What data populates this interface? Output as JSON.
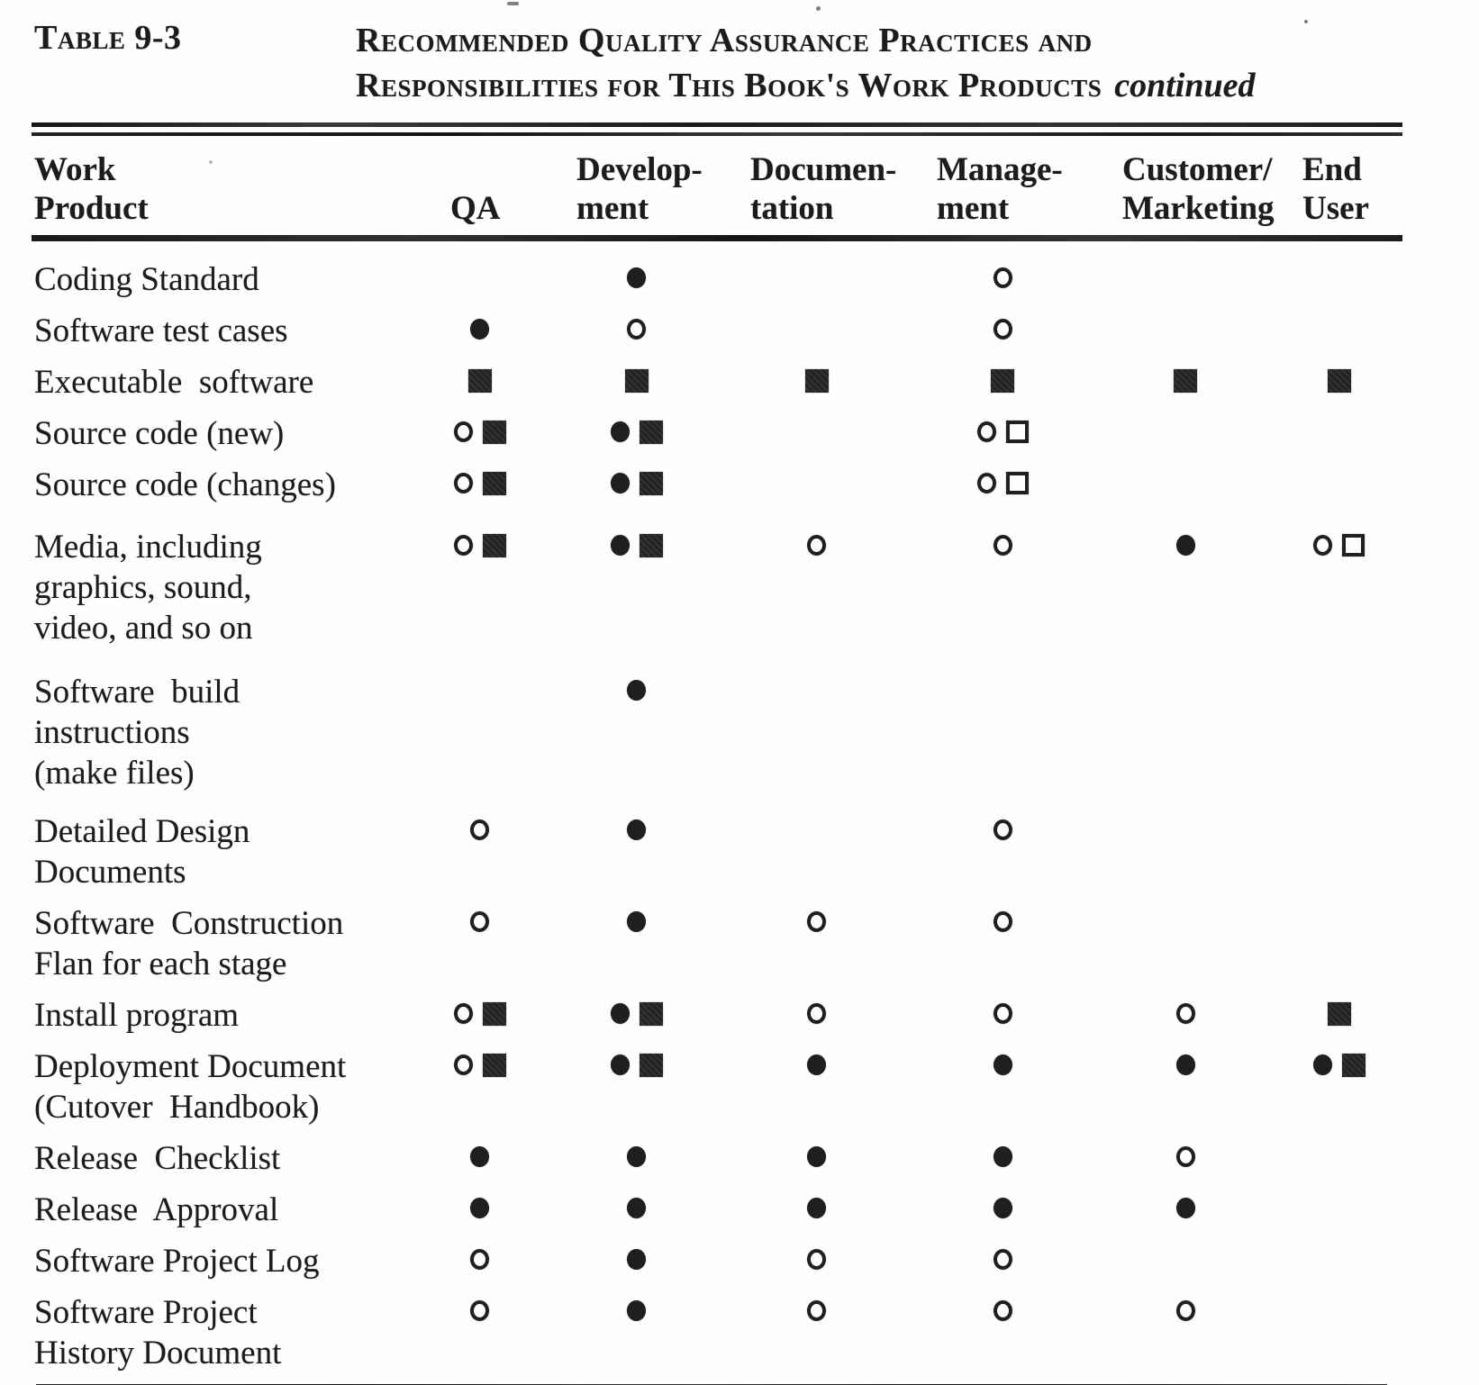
{
  "caption": {
    "table_label": "Table 9-3",
    "title_line1": "Recommended Quality Assurance Practices and",
    "title_line2": "Responsibilities for This Book's Work Products",
    "title_continued": "continued"
  },
  "symbols": {
    "filled-circle": "●",
    "open-circle": "○",
    "filled-square": "■",
    "open-square": "□"
  },
  "ink_color": "#1c1c1c",
  "paper_color": "#fefefe",
  "columns": [
    {
      "id": "work_product",
      "label": "Work\nProduct"
    },
    {
      "id": "qa",
      "label": "QA"
    },
    {
      "id": "development",
      "label": "Develop-\nment"
    },
    {
      "id": "documentation",
      "label": "Documen-\ntation"
    },
    {
      "id": "management",
      "label": "Manage-\nment"
    },
    {
      "id": "customer_marketing",
      "label": "Customer/\nMarketing"
    },
    {
      "id": "end_user",
      "label": "End\nUser"
    }
  ],
  "rows": [
    {
      "name": "Coding Standard",
      "cells": [
        [],
        [
          "filled-circle"
        ],
        [],
        [
          "open-circle"
        ],
        [],
        []
      ]
    },
    {
      "name": "Software test cases",
      "cells": [
        [
          "filled-circle"
        ],
        [
          "open-circle"
        ],
        [],
        [
          "open-circle"
        ],
        [],
        []
      ]
    },
    {
      "name": "Executable  software",
      "cells": [
        [
          "filled-square"
        ],
        [
          "filled-square"
        ],
        [
          "filled-square"
        ],
        [
          "filled-square"
        ],
        [
          "filled-square"
        ],
        [
          "filled-square"
        ]
      ]
    },
    {
      "name": "Source code (new)",
      "cells": [
        [
          "open-circle",
          "filled-square"
        ],
        [
          "filled-circle",
          "filled-square"
        ],
        [],
        [
          "open-circle",
          "open-square"
        ],
        [],
        []
      ]
    },
    {
      "name": "Source code (changes)",
      "cells": [
        [
          "open-circle",
          "filled-square"
        ],
        [
          "filled-circle",
          "filled-square"
        ],
        [],
        [
          "open-circle",
          "open-square"
        ],
        [],
        []
      ]
    },
    {
      "name": "Media, including\ngraphics, sound,\nvideo, and so on",
      "cells": [
        [
          "open-circle",
          "filled-square"
        ],
        [
          "filled-circle",
          "filled-square"
        ],
        [
          "open-circle"
        ],
        [
          "open-circle"
        ],
        [
          "filled-circle"
        ],
        [
          "open-circle",
          "open-square"
        ]
      ]
    },
    {
      "name": "Software  build\ninstructions\n(make files)",
      "cells": [
        [],
        [
          "filled-circle"
        ],
        [],
        [],
        [],
        []
      ]
    },
    {
      "name": "Detailed Design\nDocuments",
      "cells": [
        [
          "open-circle"
        ],
        [
          "filled-circle"
        ],
        [],
        [
          "open-circle"
        ],
        [],
        []
      ]
    },
    {
      "name": "Software  Construction\nFlan for each stage",
      "cells": [
        [
          "open-circle"
        ],
        [
          "filled-circle"
        ],
        [
          "open-circle"
        ],
        [
          "open-circle"
        ],
        [],
        []
      ]
    },
    {
      "name": "Install program",
      "cells": [
        [
          "open-circle",
          "filled-square"
        ],
        [
          "filled-circle",
          "filled-square"
        ],
        [
          "open-circle"
        ],
        [
          "open-circle"
        ],
        [
          "open-circle"
        ],
        [
          "filled-square"
        ]
      ]
    },
    {
      "name": "Deployment Document\n(Cutover  Handbook)",
      "cells": [
        [
          "open-circle",
          "filled-square"
        ],
        [
          "filled-circle",
          "filled-square"
        ],
        [
          "filled-circle"
        ],
        [
          "filled-circle"
        ],
        [
          "filled-circle"
        ],
        [
          "filled-circle",
          "filled-square"
        ]
      ]
    },
    {
      "name": "Release  Checklist",
      "cells": [
        [
          "filled-circle"
        ],
        [
          "filled-circle"
        ],
        [
          "filled-circle"
        ],
        [
          "filled-circle"
        ],
        [
          "open-circle"
        ],
        []
      ]
    },
    {
      "name": "Release  Approval",
      "cells": [
        [
          "filled-circle"
        ],
        [
          "filled-circle"
        ],
        [
          "filled-circle"
        ],
        [
          "filled-circle"
        ],
        [
          "filled-circle"
        ],
        []
      ]
    },
    {
      "name": "Software Project Log",
      "cells": [
        [
          "open-circle"
        ],
        [
          "filled-circle"
        ],
        [
          "open-circle"
        ],
        [
          "open-circle"
        ],
        [],
        []
      ]
    },
    {
      "name": "Software Project\nHistory Document",
      "cells": [
        [
          "open-circle"
        ],
        [
          "filled-circle"
        ],
        [
          "open-circle"
        ],
        [
          "open-circle"
        ],
        [
          "open-circle"
        ],
        []
      ]
    }
  ]
}
